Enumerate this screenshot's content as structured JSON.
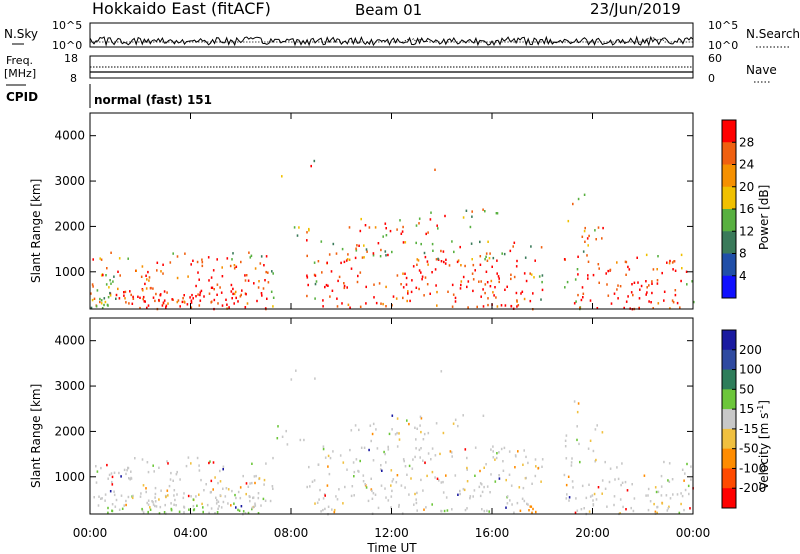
{
  "header": {
    "title": "Hokkaido East (fitACF)",
    "beam": "Beam 01",
    "date": "23/Jun/2019"
  },
  "noise_panel": {
    "left_label": "N.Sky",
    "right_label": "N.Search",
    "ticks_left": [
      "10^5",
      "10^0"
    ],
    "ticks_right": [
      "10^5",
      "10^0"
    ]
  },
  "freq_panel": {
    "left_label_1": "Freq.",
    "left_label_2": "[MHz]",
    "ticks_left": [
      "18",
      "8"
    ],
    "ticks_right": [
      "60",
      "0"
    ],
    "right_label": "Nave"
  },
  "cpid_panel": {
    "label": "CPID",
    "mode": "normal (fast) 151"
  },
  "colors": {
    "power": [
      "#1010ff",
      "#204fa8",
      "#3a7a5a",
      "#58b040",
      "#f0c000",
      "#f59000",
      "#f06010",
      "#ff0000"
    ],
    "velocity": [
      "#1a1aa0",
      "#2f4aa0",
      "#2e7d5a",
      "#6cc63a",
      "#c8c8c8",
      "#f0c040",
      "#ff8c00",
      "#ff4a00",
      "#ff0000"
    ]
  },
  "chart_data": [
    {
      "type": "heatmap",
      "name": "power",
      "ylabel": "Slant Range [km]",
      "ylim": [
        180,
        4500
      ],
      "yticks": [
        "1000",
        "2000",
        "3000",
        "4000"
      ],
      "ytick_values": [
        1000,
        2000,
        3000,
        4000
      ],
      "colorbar_label": "Power [dB]",
      "colorbar_ticks": [
        "4",
        "8",
        "12",
        "16",
        "20",
        "24",
        "28"
      ],
      "colorbar_range": [
        0,
        32
      ]
    },
    {
      "type": "heatmap",
      "name": "velocity",
      "ylabel": "Slant Range [km]",
      "ylim": [
        180,
        4500
      ],
      "yticks": [
        "1000",
        "2000",
        "3000",
        "4000"
      ],
      "ytick_values": [
        1000,
        2000,
        3000,
        4000
      ],
      "colorbar_label": "Velocity [m s",
      "colorbar_label_sup": "-1",
      "colorbar_ticks": [
        "200",
        "100",
        "50",
        "15",
        "-15",
        "-50",
        "-100",
        "-200"
      ]
    }
  ],
  "time_axis": {
    "xlabel": "Time UT",
    "ticks": [
      "00:00",
      "04:00",
      "08:00",
      "12:00",
      "16:00",
      "20:00",
      "00:00"
    ],
    "tick_hours": [
      0,
      4,
      8,
      12,
      16,
      20,
      24
    ],
    "range_hours": [
      0,
      24
    ]
  }
}
